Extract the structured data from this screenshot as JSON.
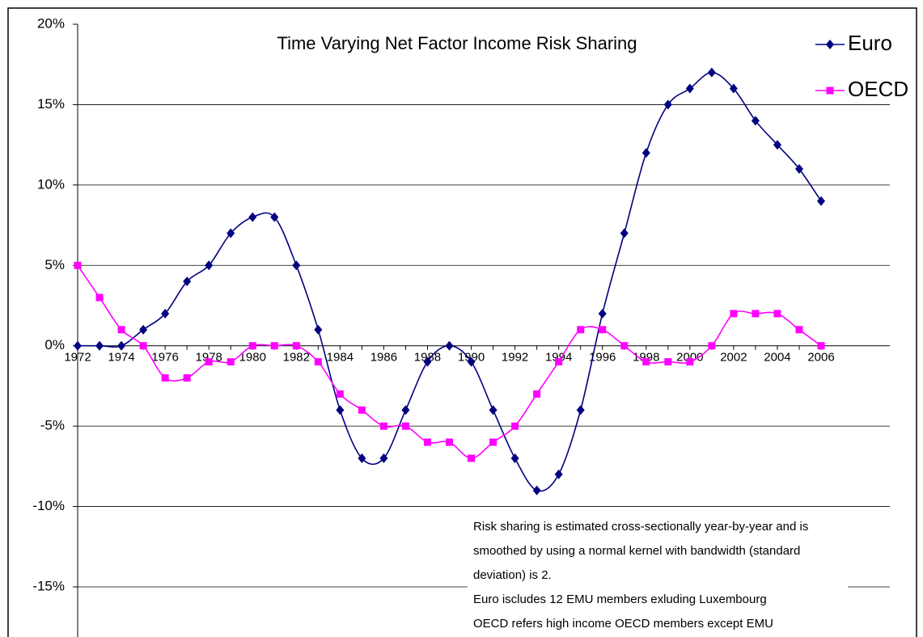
{
  "chart_data": {
    "type": "line",
    "title": "Time Varying  Net Factor Income Risk Sharing",
    "categories": [
      "1972",
      null,
      "1974",
      null,
      "1976",
      null,
      "1978",
      null,
      "1980",
      null,
      "1982",
      null,
      "1984",
      null,
      "1986",
      null,
      "1988",
      null,
      "1990",
      null,
      "1992",
      null,
      "1994",
      null,
      "1996",
      null,
      "1998",
      null,
      "2000",
      null,
      "2002",
      null,
      "2004",
      null,
      "2006"
    ],
    "series": [
      {
        "name": "Euro",
        "color": "#000080",
        "marker": "diamond",
        "values": [
          0,
          0,
          0,
          1,
          2,
          4,
          5,
          7,
          8,
          8,
          5,
          1,
          -4,
          -7,
          -7,
          -4,
          -1,
          0,
          -1,
          -4,
          -7,
          -9,
          -8,
          -4,
          2,
          7,
          12,
          15,
          16,
          17,
          16,
          14,
          12.5,
          11,
          9
        ]
      },
      {
        "name": "OECD",
        "color": "#ff00ff",
        "marker": "square",
        "values": [
          5,
          3,
          1,
          0,
          -2,
          -2,
          -1,
          -1,
          0,
          0,
          0,
          -1,
          -3,
          -4,
          -5,
          -5,
          -6,
          -6,
          -7,
          -6,
          -5,
          -3,
          -1,
          1,
          1,
          0,
          -1,
          -1,
          -1,
          0,
          2,
          2,
          2,
          1,
          0
        ]
      }
    ],
    "ylim": [
      -15,
      20
    ],
    "yticks": [
      {
        "value": -15,
        "label": "-15%"
      },
      {
        "value": -10,
        "label": "-10%"
      },
      {
        "value": -5,
        "label": "-5%"
      },
      {
        "value": 0,
        "label": "0%"
      },
      {
        "value": 5,
        "label": "5%"
      },
      {
        "value": 10,
        "label": "10%"
      },
      {
        "value": 15,
        "label": "15%"
      },
      {
        "value": 20,
        "label": "20%"
      }
    ],
    "grid": true,
    "legend": "top-right",
    "annotations": [
      "Risk sharing is estimated cross-sectionally year-by-year and is",
      "smoothed by using a normal kernel with bandwidth (standard",
      "deviation) is 2.",
      "Euro iscludes 12 EMU members exluding Luxembourg",
      "OECD refers  high income OECD members except EMU"
    ]
  }
}
